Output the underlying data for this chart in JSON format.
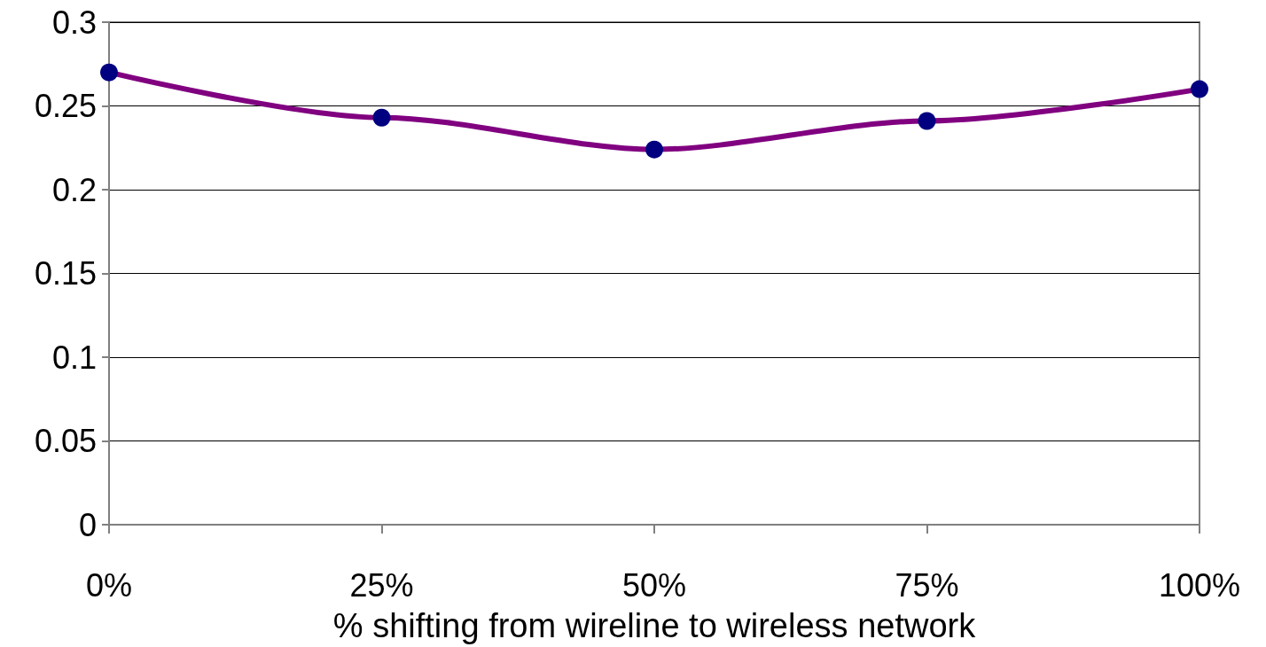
{
  "chart_data": {
    "type": "line",
    "xlabel": "% shifting from wireline to wireless network",
    "categories": [
      "0%",
      "25%",
      "50%",
      "75%",
      "100%"
    ],
    "series": [
      {
        "color": "#800080",
        "colors": [
          "#000080",
          "#000080",
          "#000080",
          "#000080",
          "#000080"
        ],
        "values": [
          0.27,
          0.243,
          0.224,
          0.241,
          0.26
        ]
      }
    ],
    "ylim": [
      0,
      0.3
    ],
    "yticks": [
      0,
      0.05,
      0.1,
      0.15,
      0.2,
      0.25,
      0.3
    ],
    "grid": "y",
    "marker": "circle",
    "line_style": "solid"
  }
}
